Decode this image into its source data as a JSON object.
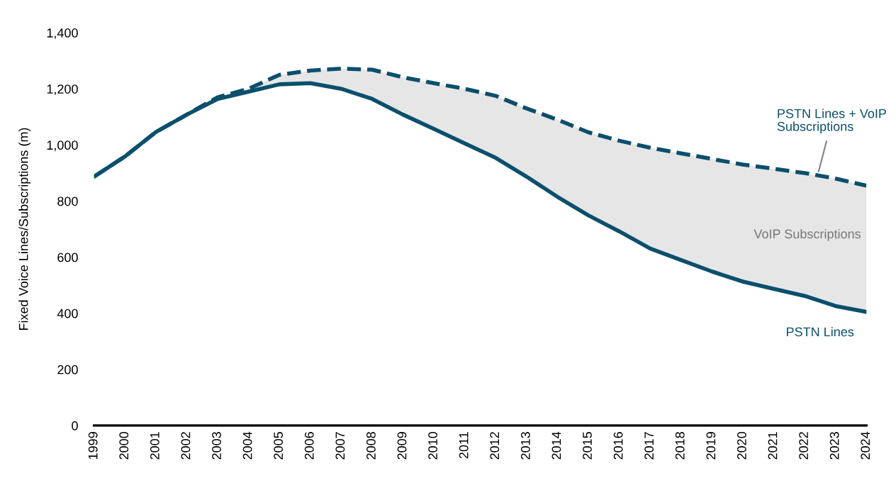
{
  "chart_data": {
    "type": "line",
    "ylabel": "Fixed Voice Lines/Subscriptions (m)",
    "x": [
      1999,
      2000,
      2001,
      2002,
      2003,
      2004,
      2005,
      2006,
      2007,
      2008,
      2009,
      2010,
      2011,
      2012,
      2013,
      2014,
      2015,
      2016,
      2017,
      2018,
      2019,
      2020,
      2021,
      2022,
      2023,
      2024
    ],
    "xlim": [
      1999,
      2024
    ],
    "xticks": [
      1999,
      2000,
      2001,
      2002,
      2003,
      2004,
      2005,
      2006,
      2007,
      2008,
      2009,
      2010,
      2011,
      2012,
      2013,
      2014,
      2015,
      2016,
      2017,
      2018,
      2019,
      2020,
      2021,
      2022,
      2023,
      2024
    ],
    "ylim": [
      0,
      1400
    ],
    "yticks": [
      0,
      200,
      400,
      600,
      800,
      {
        "value": 1000,
        "label": "1,000"
      },
      {
        "value": 1200,
        "label": "1,200"
      },
      {
        "value": 1400,
        "label": "1,400"
      }
    ],
    "grid": false,
    "legend": false,
    "series": [
      {
        "name": "PSTN Lines",
        "color": "#0b4f6c",
        "line_style": "solid",
        "values": [
          887,
          959,
          1046,
          1108,
          1164,
          1190,
          1216,
          1220,
          1200,
          1164,
          1108,
          1057,
          1005,
          954,
          887,
          815,
          749,
          692,
          631,
          590,
          549,
          513,
          487,
          462,
          426,
          405
        ]
      },
      {
        "name": "PSTN Lines + VoIP\nSubscriptions",
        "color": "#0b4f6c",
        "line_style": "dashed",
        "values": [
          887,
          959,
          1046,
          1108,
          1170,
          1200,
          1250,
          1265,
          1272,
          1268,
          1241,
          1220,
          1200,
          1175,
          1130,
          1090,
          1045,
          1015,
          990,
          970,
          950,
          930,
          915,
          900,
          880,
          855
        ],
        "lower": [
          887,
          959,
          1046,
          1108,
          1164,
          1190,
          1216,
          1220,
          1200,
          1164,
          1108,
          1057,
          1005,
          954,
          887,
          815,
          749,
          692,
          631,
          590,
          549,
          513,
          487,
          462,
          426,
          405
        ],
        "upper": [
          887,
          959,
          1046,
          1108,
          1170,
          1200,
          1250,
          1265,
          1272,
          1268,
          1241,
          1220,
          1200,
          1175,
          1130,
          1090,
          1045,
          1015,
          990,
          970,
          950,
          930,
          915,
          900,
          880,
          855
        ]
      }
    ],
    "annotations": [
      "VoIP Subscriptions"
    ]
  }
}
